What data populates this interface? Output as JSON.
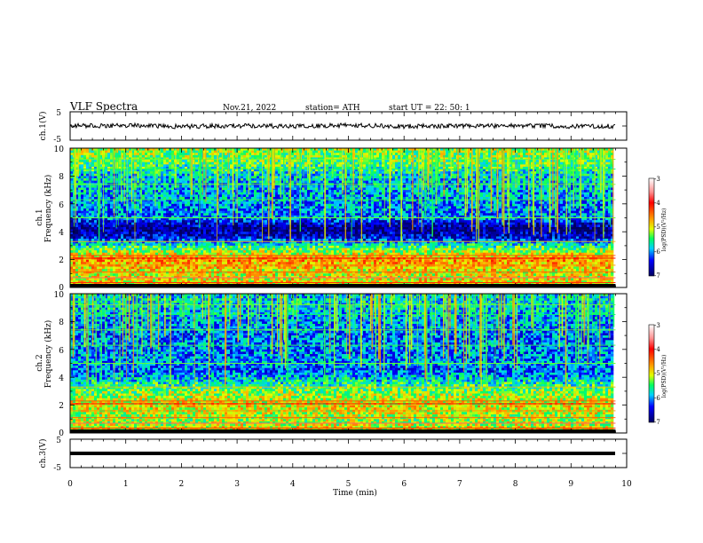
{
  "header": {
    "title": "VLF  Spectra",
    "date": "Nov.21, 2022",
    "station": "station= ATH",
    "start": "start  UT  =    22: 50: 1"
  },
  "panels": {
    "ch1_waveform": {
      "ylabel": "ch.1(V)",
      "ticks": [
        "5",
        "-5"
      ]
    },
    "ch1_spectrogram": {
      "ylabel_top": "ch.1",
      "ylabel": "Frequency  (kHz)",
      "ticks": [
        "10",
        "8",
        "6",
        "4",
        "2",
        "0"
      ],
      "colorbar_label": "log(PSD)(V²/Hz)",
      "colorbar_ticks": [
        "-3",
        "-4",
        "-5",
        "-6",
        "-7"
      ]
    },
    "ch2_spectrogram": {
      "ylabel_top": "ch.2",
      "ylabel": "Frequency  (kHz)",
      "ticks": [
        "10",
        "8",
        "6",
        "4",
        "2",
        "0"
      ],
      "colorbar_label": "log(PSD)(V²/Hz)",
      "colorbar_ticks": [
        "-3",
        "-4",
        "-5",
        "-6",
        "-7"
      ]
    },
    "ch3_waveform": {
      "ylabel": "ch.3(V)",
      "ticks": [
        "5",
        "-5"
      ]
    }
  },
  "x_axis": {
    "label": "Time  (min)",
    "ticks": [
      "0",
      "1",
      "2",
      "3",
      "4",
      "5",
      "6",
      "7",
      "8",
      "9",
      "10"
    ]
  },
  "colors": {
    "background": "#ffffff",
    "axes": "#000000",
    "colormap": [
      "#00007a",
      "#0000ff",
      "#00d0ff",
      "#00ff60",
      "#e0ff00",
      "#ff0000",
      "#ffffff"
    ]
  },
  "chart_data": [
    {
      "type": "line",
      "ylabel": "ch.1(V)",
      "xlim": [
        0,
        10
      ],
      "ylim": [
        -5,
        5
      ],
      "x": [
        0,
        1,
        2,
        3,
        4,
        5,
        6,
        7,
        8,
        9,
        9.8
      ],
      "y": [
        0,
        0.2,
        -0.2,
        0.1,
        -0.1,
        0.2,
        -0.1,
        0,
        0.1,
        -0.1,
        0
      ]
    },
    {
      "type": "heatmap",
      "ylabel": "Frequency  (kHz)",
      "xlim": [
        0,
        10
      ],
      "ylim": [
        0,
        10
      ],
      "x_extent": [
        0,
        9.8
      ],
      "color_scale": [
        -7,
        -3
      ],
      "colorbar_label": "log(PSD)(V²/Hz)",
      "freq_levels_khz": [
        0,
        1,
        2,
        3,
        3.6,
        4.2,
        5,
        6,
        7,
        8,
        9,
        10
      ],
      "log_psd_levels": [
        -4.8,
        -5.0,
        -4.6,
        -5.6,
        -6.5,
        -6.9,
        -6.1,
        -6.0,
        -5.9,
        -5.8,
        -5.4,
        -5.2
      ]
    },
    {
      "type": "heatmap",
      "ylabel": "Frequency  (kHz)",
      "xlim": [
        0,
        10
      ],
      "ylim": [
        0,
        10
      ],
      "x_extent": [
        0,
        9.8
      ],
      "color_scale": [
        -7,
        -3
      ],
      "colorbar_label": "log(PSD)(V²/Hz)",
      "freq_levels_khz": [
        0,
        1,
        2,
        3,
        4,
        4.6,
        5,
        6,
        7,
        8,
        9,
        10
      ],
      "log_psd_levels": [
        -4.9,
        -5.2,
        -4.9,
        -5.3,
        -5.9,
        -6.2,
        -6.0,
        -6.1,
        -6.1,
        -6.0,
        -5.8,
        -5.8
      ]
    },
    {
      "type": "line",
      "ylabel": "ch.3(V)",
      "xlim": [
        0,
        10
      ],
      "ylim": [
        -5,
        5
      ],
      "x": [
        0,
        9.8
      ],
      "y": [
        0,
        0
      ]
    }
  ]
}
